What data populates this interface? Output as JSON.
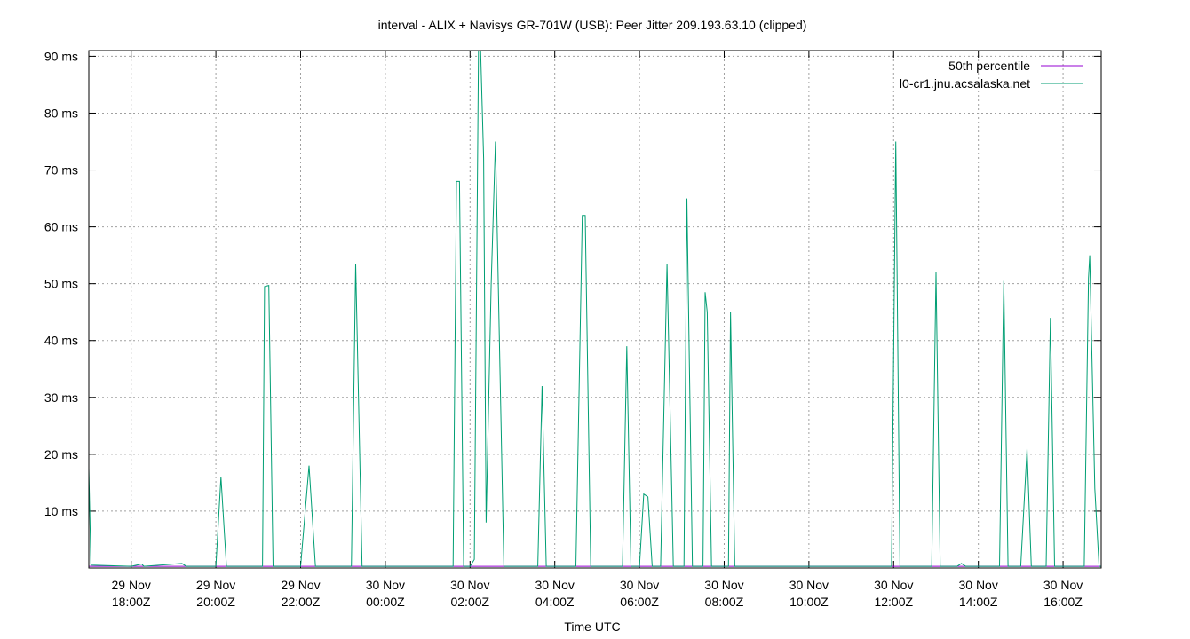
{
  "chart_data": {
    "type": "line",
    "title": "interval - ALIX + Navisys GR-701W (USB): Peer Jitter 209.193.63.10 (clipped)",
    "xlabel": "Time UTC",
    "ylabel": "",
    "x_unit": "hours since 29 Nov 17:00Z",
    "xlim": [
      17.0,
      40.9
    ],
    "ylim": [
      0,
      91
    ],
    "grid": true,
    "legend_position": "top-right",
    "y_ticks": [
      {
        "value": 10,
        "label": "10 ms"
      },
      {
        "value": 20,
        "label": "20 ms"
      },
      {
        "value": 30,
        "label": "30 ms"
      },
      {
        "value": 40,
        "label": "40 ms"
      },
      {
        "value": 50,
        "label": "50 ms"
      },
      {
        "value": 60,
        "label": "60 ms"
      },
      {
        "value": 70,
        "label": "70 ms"
      },
      {
        "value": 80,
        "label": "80 ms"
      },
      {
        "value": 90,
        "label": "90 ms"
      }
    ],
    "x_ticks": [
      {
        "value": 18,
        "line1": "29 Nov",
        "line2": "18:00Z"
      },
      {
        "value": 20,
        "line1": "29 Nov",
        "line2": "20:00Z"
      },
      {
        "value": 22,
        "line1": "29 Nov",
        "line2": "22:00Z"
      },
      {
        "value": 24,
        "line1": "30 Nov",
        "line2": "00:00Z"
      },
      {
        "value": 26,
        "line1": "30 Nov",
        "line2": "02:00Z"
      },
      {
        "value": 28,
        "line1": "30 Nov",
        "line2": "04:00Z"
      },
      {
        "value": 30,
        "line1": "30 Nov",
        "line2": "06:00Z"
      },
      {
        "value": 32,
        "line1": "30 Nov",
        "line2": "08:00Z"
      },
      {
        "value": 34,
        "line1": "30 Nov",
        "line2": "10:00Z"
      },
      {
        "value": 36,
        "line1": "30 Nov",
        "line2": "12:00Z"
      },
      {
        "value": 38,
        "line1": "30 Nov",
        "line2": "14:00Z"
      },
      {
        "value": 40,
        "line1": "30 Nov",
        "line2": "16:00Z"
      }
    ],
    "series": [
      {
        "name": "50th percentile",
        "color": "#9400d3",
        "points": [
          [
            17.0,
            0.3
          ],
          [
            40.9,
            0.3
          ]
        ]
      },
      {
        "name": "l0-cr1.jnu.acsalaska.net",
        "color": "#009e73",
        "points": [
          [
            17.0,
            17.5
          ],
          [
            17.05,
            0.5
          ],
          [
            18.0,
            0.3
          ],
          [
            18.25,
            0.7
          ],
          [
            18.3,
            0.3
          ],
          [
            19.2,
            0.8
          ],
          [
            19.3,
            0.3
          ],
          [
            20.0,
            0.3
          ],
          [
            20.12,
            16.0
          ],
          [
            20.25,
            0.3
          ],
          [
            21.1,
            0.3
          ],
          [
            21.15,
            49.5
          ],
          [
            21.25,
            49.7
          ],
          [
            21.35,
            0.3
          ],
          [
            22.0,
            0.3
          ],
          [
            22.2,
            18.0
          ],
          [
            22.35,
            0.3
          ],
          [
            23.2,
            0.3
          ],
          [
            23.3,
            53.5
          ],
          [
            23.45,
            0.3
          ],
          [
            24.5,
            0.3
          ],
          [
            25.6,
            0.3
          ],
          [
            25.68,
            68.0
          ],
          [
            25.75,
            68.0
          ],
          [
            25.85,
            0.3
          ],
          [
            26.0,
            0.3
          ],
          [
            26.1,
            1.5
          ],
          [
            26.2,
            91.0
          ],
          [
            26.25,
            91.0
          ],
          [
            26.32,
            72.0
          ],
          [
            26.38,
            8.0
          ],
          [
            26.5,
            50.0
          ],
          [
            26.6,
            75.0
          ],
          [
            26.8,
            0.3
          ],
          [
            27.6,
            0.3
          ],
          [
            27.7,
            32.0
          ],
          [
            27.8,
            0.3
          ],
          [
            28.5,
            0.3
          ],
          [
            28.65,
            62.0
          ],
          [
            28.72,
            62.0
          ],
          [
            28.85,
            0.3
          ],
          [
            29.6,
            0.3
          ],
          [
            29.7,
            39.0
          ],
          [
            29.8,
            0.3
          ],
          [
            30.0,
            0.3
          ],
          [
            30.1,
            13.0
          ],
          [
            30.2,
            12.5
          ],
          [
            30.3,
            0.3
          ],
          [
            30.5,
            0.3
          ],
          [
            30.65,
            53.5
          ],
          [
            30.8,
            0.3
          ],
          [
            31.05,
            0.3
          ],
          [
            31.12,
            65.0
          ],
          [
            31.25,
            0.3
          ],
          [
            31.5,
            0.3
          ],
          [
            31.55,
            48.5
          ],
          [
            31.6,
            45.0
          ],
          [
            31.7,
            0.3
          ],
          [
            32.1,
            0.3
          ],
          [
            32.15,
            45.0
          ],
          [
            32.25,
            0.3
          ],
          [
            33.0,
            0.3
          ],
          [
            34.0,
            0.3
          ],
          [
            35.0,
            0.3
          ],
          [
            35.95,
            0.3
          ],
          [
            36.05,
            75.0
          ],
          [
            36.15,
            0.3
          ],
          [
            36.9,
            0.3
          ],
          [
            37.0,
            52.0
          ],
          [
            37.1,
            0.3
          ],
          [
            37.5,
            0.3
          ],
          [
            37.6,
            0.8
          ],
          [
            37.7,
            0.3
          ],
          [
            38.5,
            0.3
          ],
          [
            38.6,
            50.5
          ],
          [
            38.7,
            0.3
          ],
          [
            39.0,
            0.3
          ],
          [
            39.15,
            21.0
          ],
          [
            39.25,
            0.3
          ],
          [
            39.6,
            0.3
          ],
          [
            39.7,
            44.0
          ],
          [
            39.8,
            0.3
          ],
          [
            40.5,
            0.3
          ],
          [
            40.6,
            51.0
          ],
          [
            40.63,
            55.0
          ],
          [
            40.75,
            14.0
          ],
          [
            40.85,
            0.3
          ],
          [
            40.9,
            0.3
          ]
        ]
      }
    ]
  }
}
